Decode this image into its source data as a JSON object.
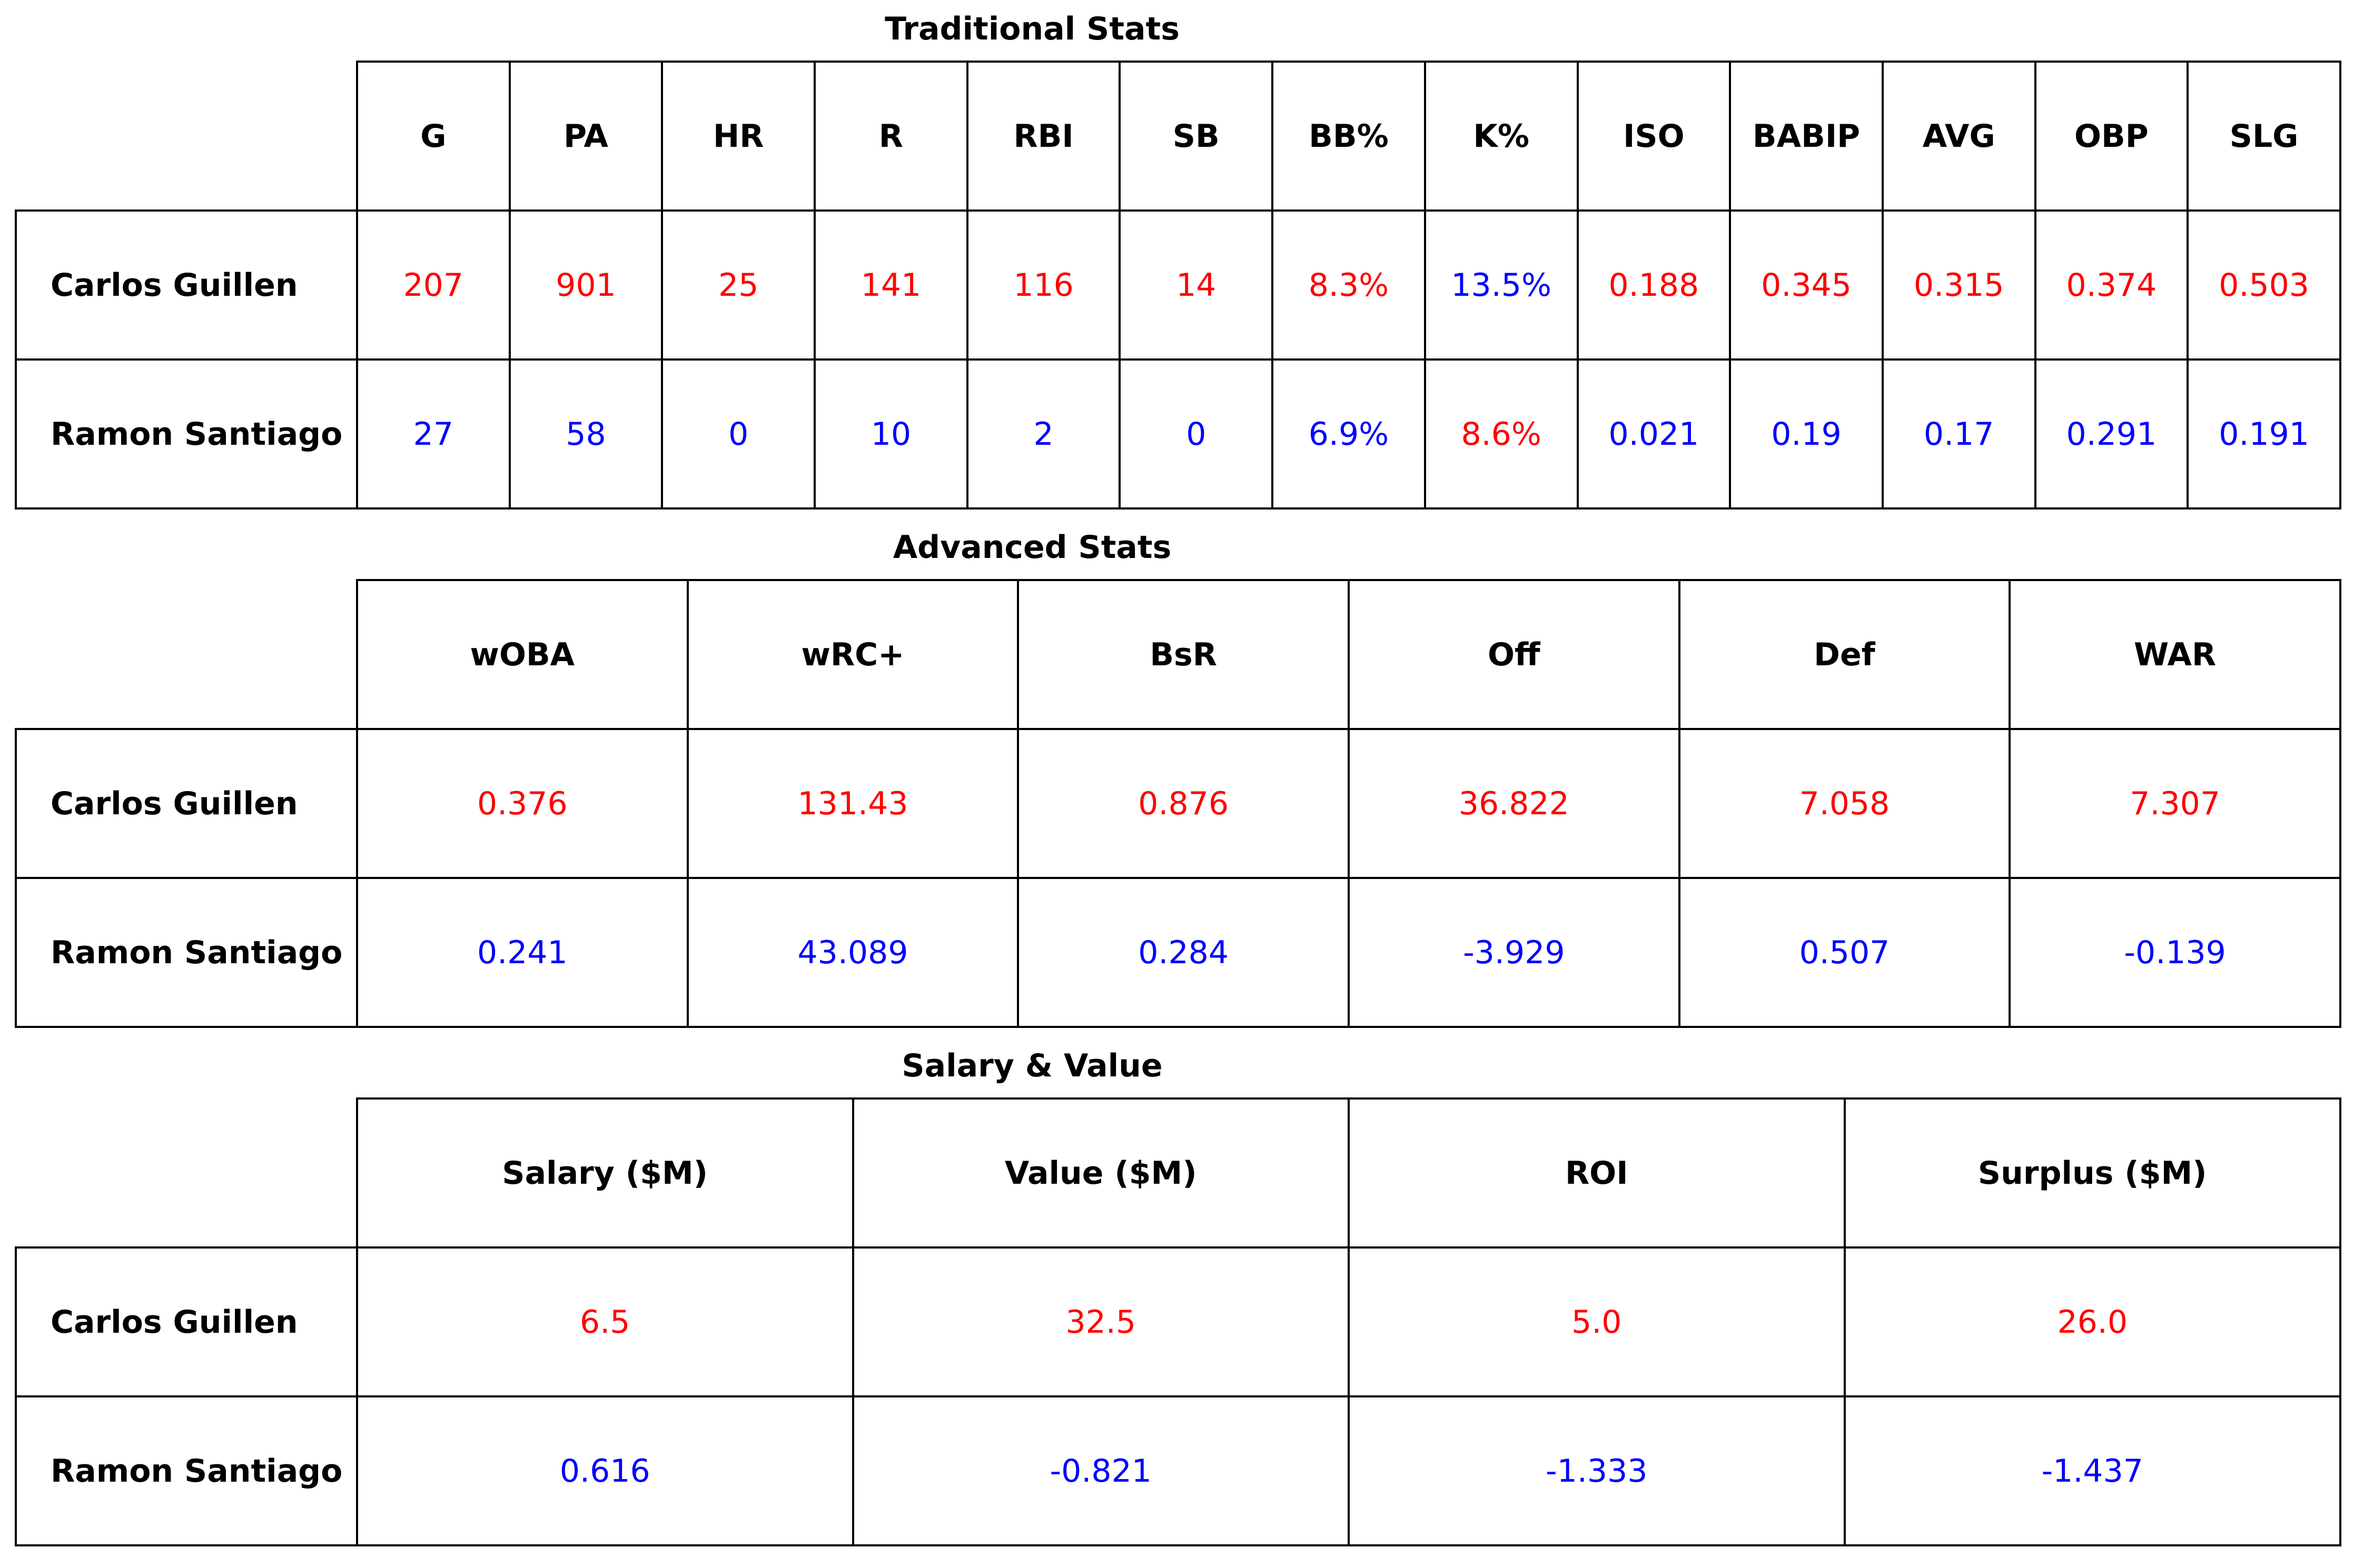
{
  "colors": {
    "higher": "#ff0000",
    "lower": "#0000ff",
    "text": "#000000",
    "border": "#000000"
  },
  "chart_data": [
    {
      "type": "table",
      "title": "Traditional Stats",
      "columns": [
        "G",
        "PA",
        "HR",
        "R",
        "RBI",
        "SB",
        "BB%",
        "K%",
        "ISO",
        "BABIP",
        "AVG",
        "OBP",
        "SLG"
      ],
      "rows": [
        {
          "player": "Carlos Guillen",
          "values": [
            "207",
            "901",
            "25",
            "141",
            "116",
            "14",
            "8.3%",
            "13.5%",
            "0.188",
            "0.345",
            "0.315",
            "0.374",
            "0.503"
          ],
          "colors": [
            "higher",
            "higher",
            "higher",
            "higher",
            "higher",
            "higher",
            "higher",
            "lower",
            "higher",
            "higher",
            "higher",
            "higher",
            "higher"
          ]
        },
        {
          "player": "Ramon Santiago",
          "values": [
            "27",
            "58",
            "0",
            "10",
            "2",
            "0",
            "6.9%",
            "8.6%",
            "0.021",
            "0.19",
            "0.17",
            "0.291",
            "0.191"
          ],
          "colors": [
            "lower",
            "lower",
            "lower",
            "lower",
            "lower",
            "lower",
            "lower",
            "higher",
            "lower",
            "lower",
            "lower",
            "lower",
            "lower"
          ]
        }
      ]
    },
    {
      "type": "table",
      "title": "Advanced Stats",
      "columns": [
        "wOBA",
        "wRC+",
        "BsR",
        "Off",
        "Def",
        "WAR"
      ],
      "rows": [
        {
          "player": "Carlos Guillen",
          "values": [
            "0.376",
            "131.43",
            "0.876",
            "36.822",
            "7.058",
            "7.307"
          ],
          "colors": [
            "higher",
            "higher",
            "higher",
            "higher",
            "higher",
            "higher"
          ]
        },
        {
          "player": "Ramon Santiago",
          "values": [
            "0.241",
            "43.089",
            "0.284",
            "-3.929",
            "0.507",
            "-0.139"
          ],
          "colors": [
            "lower",
            "lower",
            "lower",
            "lower",
            "lower",
            "lower"
          ]
        }
      ]
    },
    {
      "type": "table",
      "title": "Salary & Value",
      "columns": [
        "Salary ($M)",
        "Value ($M)",
        "ROI",
        "Surplus ($M)"
      ],
      "rows": [
        {
          "player": "Carlos Guillen",
          "values": [
            "6.5",
            "32.5",
            "5.0",
            "26.0"
          ],
          "colors": [
            "higher",
            "higher",
            "higher",
            "higher"
          ]
        },
        {
          "player": "Ramon Santiago",
          "values": [
            "0.616",
            "-0.821",
            "-1.333",
            "-1.437"
          ],
          "colors": [
            "lower",
            "lower",
            "lower",
            "lower"
          ]
        }
      ]
    }
  ]
}
